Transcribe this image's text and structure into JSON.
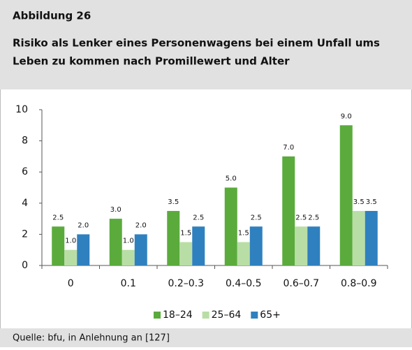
{
  "header": {
    "figure": "Abbildung 26",
    "title_lines": [
      "Risiko als Lenker eines Personenwagens bei einem Unfall ums",
      "Leben zu kommen nach Promillewert und Alter"
    ]
  },
  "chart_data": {
    "type": "bar",
    "categories": [
      "0",
      "0.1",
      "0.2–0.3",
      "0.4–0.5",
      "0.6–0.7",
      "0.8–0.9"
    ],
    "series": [
      {
        "name": "18–24",
        "color": "#5aab3c",
        "values": [
          2.5,
          3.0,
          3.5,
          5.0,
          7.0,
          9.0
        ],
        "value_labels": [
          "2.5",
          "3.0",
          "3.5",
          "5.0",
          "7.0",
          "9.0"
        ]
      },
      {
        "name": "25–64",
        "color": "#b9dea5",
        "values": [
          1.0,
          1.0,
          1.5,
          1.5,
          2.5,
          3.5
        ],
        "value_labels": [
          "1.0",
          "1.0",
          "1.5",
          "1.5",
          "2.5",
          "3.5"
        ]
      },
      {
        "name": "65+",
        "color": "#2f80bf",
        "values": [
          2.0,
          2.0,
          2.5,
          2.5,
          2.5,
          3.5
        ],
        "value_labels": [
          "2.0",
          "2.0",
          "2.5",
          "2.5",
          "2.5",
          "3.5"
        ]
      }
    ],
    "ylim": [
      0,
      10
    ],
    "yticks": [
      0,
      2,
      4,
      6,
      8,
      10
    ],
    "grid": false,
    "legend": "bottom"
  },
  "footer": {
    "source": "Quelle: bfu, in Anlehnung an [127]"
  }
}
